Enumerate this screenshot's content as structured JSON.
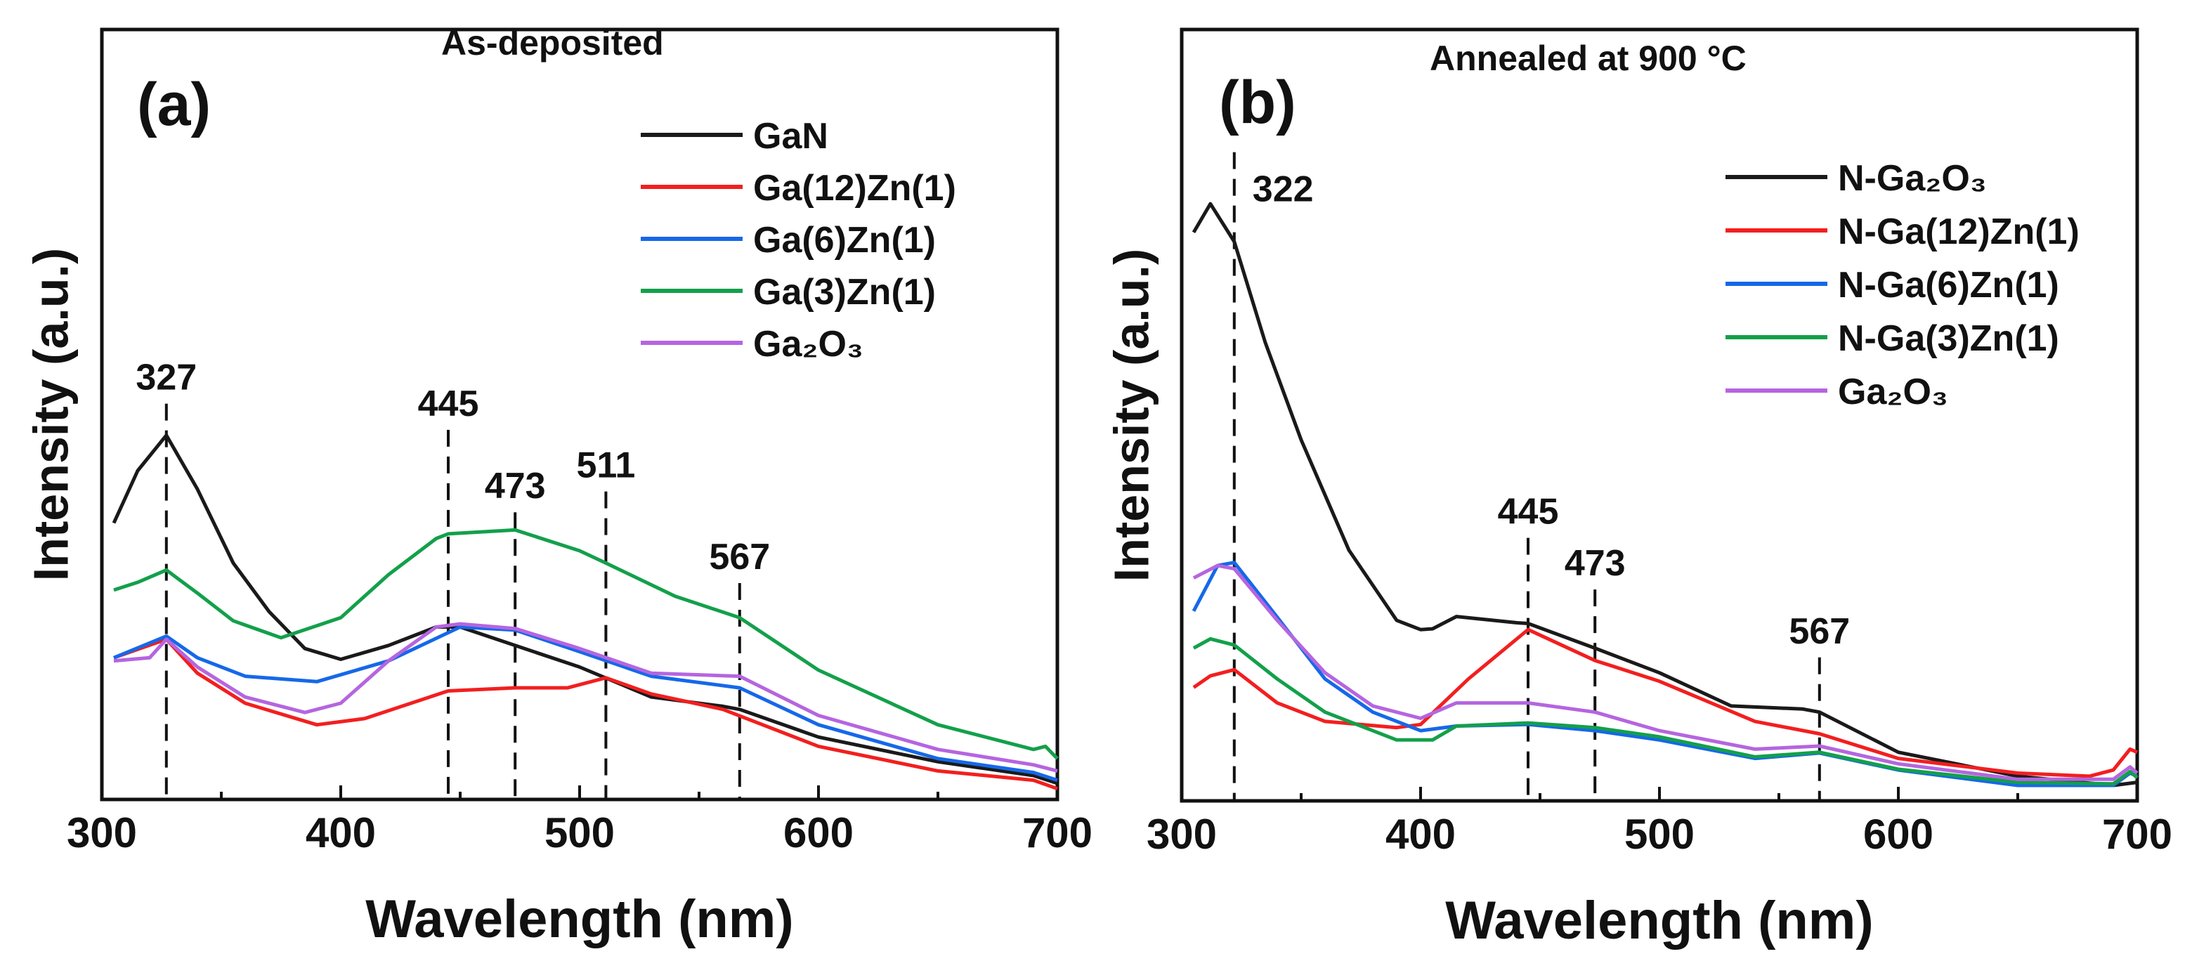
{
  "chart_data": [
    {
      "type": "line",
      "panel_label": "(a)",
      "title": "As-deposited",
      "xlabel": "Wavelength (nm)",
      "ylabel": "Intensity (a.u.)",
      "xlim": [
        300,
        700
      ],
      "ylim": [
        0,
        100
      ],
      "xticks": [
        300,
        400,
        500,
        600,
        700
      ],
      "grid": false,
      "legend_position": "top-right",
      "peak_markers": [
        {
          "label": "327",
          "x": 327,
          "top": 51.4
        },
        {
          "label": "445",
          "x": 445,
          "top": 48.0
        },
        {
          "label": "473",
          "x": 473,
          "top": 37.3
        },
        {
          "label": "511",
          "x": 511,
          "top": 40.0
        },
        {
          "label": "567",
          "x": 567,
          "top": 28.1
        }
      ],
      "series": [
        {
          "name": "GaN",
          "color": "#1a1a1a",
          "x": [
            305,
            315,
            327,
            340,
            355,
            370,
            385,
            400,
            420,
            440,
            450,
            473,
            500,
            530,
            560,
            567,
            600,
            650,
            690,
            700
          ],
          "y": [
            35.9,
            42.7,
            47.3,
            40.3,
            30.7,
            24.4,
            19.6,
            18.2,
            20.0,
            22.4,
            22.4,
            20.0,
            17.2,
            13.3,
            12.1,
            11.7,
            8.1,
            4.9,
            3.1,
            2.1
          ]
        },
        {
          "name": "Ga(12)Zn(1)",
          "color": "#f21f1f",
          "x": [
            305,
            327,
            340,
            360,
            390,
            410,
            445,
            473,
            495,
            511,
            530,
            560,
            600,
            650,
            690,
            700
          ],
          "y": [
            18.4,
            20.8,
            16.4,
            12.5,
            9.7,
            10.5,
            14.1,
            14.5,
            14.5,
            15.8,
            13.7,
            11.7,
            6.9,
            3.7,
            2.5,
            1.4
          ]
        },
        {
          "name": "Ga(6)Zn(1)",
          "color": "#1668e8",
          "x": [
            305,
            327,
            340,
            360,
            390,
            420,
            450,
            473,
            500,
            530,
            567,
            600,
            650,
            690,
            700
          ],
          "y": [
            18.4,
            21.2,
            18.4,
            16.0,
            15.3,
            18.0,
            22.4,
            22.0,
            19.2,
            16.0,
            14.5,
            9.7,
            5.3,
            3.5,
            2.5
          ]
        },
        {
          "name": "Ga(3)Zn(1)",
          "color": "#13a04a",
          "x": [
            305,
            315,
            327,
            340,
            355,
            375,
            400,
            420,
            440,
            445,
            473,
            500,
            511,
            540,
            567,
            600,
            650,
            690,
            695,
            700
          ],
          "y": [
            27.2,
            28.2,
            29.8,
            26.8,
            23.2,
            21.0,
            23.6,
            29.2,
            33.9,
            34.5,
            35.0,
            32.3,
            30.7,
            26.4,
            23.6,
            16.8,
            9.7,
            6.5,
            6.9,
            5.3
          ]
        },
        {
          "name": "Ga₂O₃",
          "color": "#b565e0",
          "x": [
            305,
            320,
            327,
            340,
            360,
            385,
            400,
            420,
            440,
            450,
            473,
            500,
            530,
            567,
            600,
            650,
            690,
            700
          ],
          "y": [
            18.0,
            18.4,
            20.8,
            17.2,
            13.3,
            11.3,
            12.5,
            18.0,
            22.4,
            22.8,
            22.2,
            19.6,
            16.4,
            16.0,
            10.9,
            6.5,
            4.5,
            3.7
          ]
        }
      ]
    },
    {
      "type": "line",
      "panel_label": "(b)",
      "title": "Annealed at 900 °C",
      "xlabel": "Wavelength (nm)",
      "ylabel": "Intensity (a.u.)",
      "xlim": [
        300,
        700
      ],
      "ylim": [
        0,
        100
      ],
      "xticks": [
        300,
        400,
        500,
        600,
        700
      ],
      "grid": false,
      "legend_position": "top-right",
      "peak_markers": [
        {
          "label": "322",
          "x": 322,
          "top": 84.1
        },
        {
          "label": "445",
          "x": 445,
          "top": 34.1
        },
        {
          "label": "473",
          "x": 473,
          "top": 27.4
        },
        {
          "label": "567",
          "x": 567,
          "top": 18.6
        }
      ],
      "series": [
        {
          "name": "N-Ga₂O₃",
          "color": "#1a1a1a",
          "x": [
            305,
            312,
            322,
            335,
            350,
            370,
            390,
            400,
            405,
            415,
            440,
            445,
            473,
            500,
            530,
            560,
            567,
            600,
            650,
            690,
            700
          ],
          "y": [
            73.7,
            77.4,
            72.5,
            59.4,
            46.8,
            32.5,
            23.4,
            22.2,
            22.3,
            23.9,
            23.1,
            23.0,
            19.8,
            16.6,
            12.3,
            11.9,
            11.5,
            6.3,
            3.2,
            2.0,
            2.4
          ]
        },
        {
          "name": "N-Ga(12)Zn(1)",
          "color": "#f21f1f",
          "x": [
            305,
            312,
            322,
            340,
            360,
            390,
            400,
            420,
            445,
            473,
            500,
            540,
            567,
            600,
            650,
            680,
            690,
            697,
            700
          ],
          "y": [
            14.7,
            16.2,
            17.0,
            12.7,
            10.3,
            9.5,
            9.9,
            15.8,
            22.2,
            18.2,
            15.5,
            10.3,
            8.7,
            5.5,
            3.6,
            3.2,
            4.0,
            6.7,
            6.3
          ]
        },
        {
          "name": "N-Ga(6)Zn(1)",
          "color": "#1668e8",
          "x": [
            305,
            315,
            322,
            340,
            360,
            380,
            400,
            415,
            445,
            473,
            500,
            540,
            567,
            600,
            650,
            690,
            697,
            700
          ],
          "y": [
            24.6,
            30.5,
            30.9,
            23.8,
            15.8,
            11.5,
            9.1,
            9.7,
            9.9,
            9.1,
            7.9,
            5.5,
            6.2,
            4.0,
            2.0,
            2.0,
            3.6,
            3.2
          ]
        },
        {
          "name": "N-Ga(3)Zn(1)",
          "color": "#13a04a",
          "x": [
            305,
            312,
            322,
            340,
            360,
            390,
            405,
            415,
            445,
            473,
            500,
            540,
            567,
            600,
            650,
            690,
            697,
            700
          ],
          "y": [
            19.8,
            21.0,
            20.2,
            15.8,
            11.5,
            7.9,
            7.9,
            9.7,
            10.1,
            9.5,
            8.3,
            5.7,
            6.3,
            4.1,
            2.4,
            2.2,
            3.8,
            3.0
          ]
        },
        {
          "name": "Ga₂O₃",
          "color": "#b565e0",
          "x": [
            305,
            315,
            322,
            340,
            360,
            380,
            400,
            415,
            445,
            473,
            500,
            540,
            567,
            600,
            650,
            690,
            697,
            700
          ],
          "y": [
            28.9,
            30.5,
            30.1,
            23.4,
            16.6,
            12.3,
            10.7,
            12.7,
            12.7,
            11.5,
            9.1,
            6.7,
            7.1,
            4.8,
            2.8,
            2.8,
            4.4,
            3.6
          ]
        }
      ]
    }
  ]
}
